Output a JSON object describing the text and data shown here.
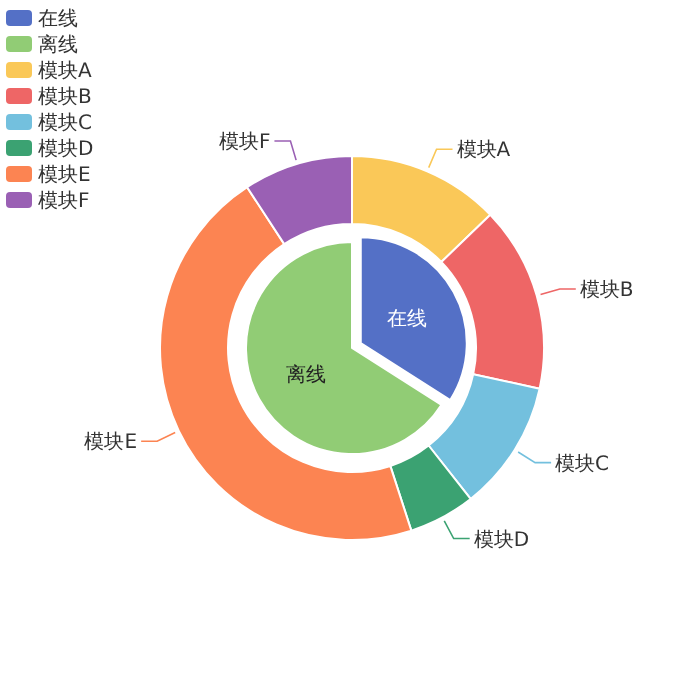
{
  "chart_data": {
    "type": "donut",
    "legend": "top left",
    "categories": [
      "在线",
      "离线",
      "模块A",
      "模块B",
      "模块C",
      "模块D",
      "模块E",
      "模块F"
    ],
    "colors": [
      "#5470c6",
      "#91cc75",
      "#fac858",
      "#ee6666",
      "#73c0de",
      "#3ba272",
      "#fc8452",
      "#9a60b4"
    ],
    "series": [
      {
        "type": "pie",
        "values": [
          34,
          66,
          null,
          null,
          null,
          null,
          null,
          null
        ]
      },
      {
        "values": [
          null,
          null,
          12.8,
          15.6,
          11,
          5.6,
          45.8,
          9.2
        ]
      }
    ]
  }
}
